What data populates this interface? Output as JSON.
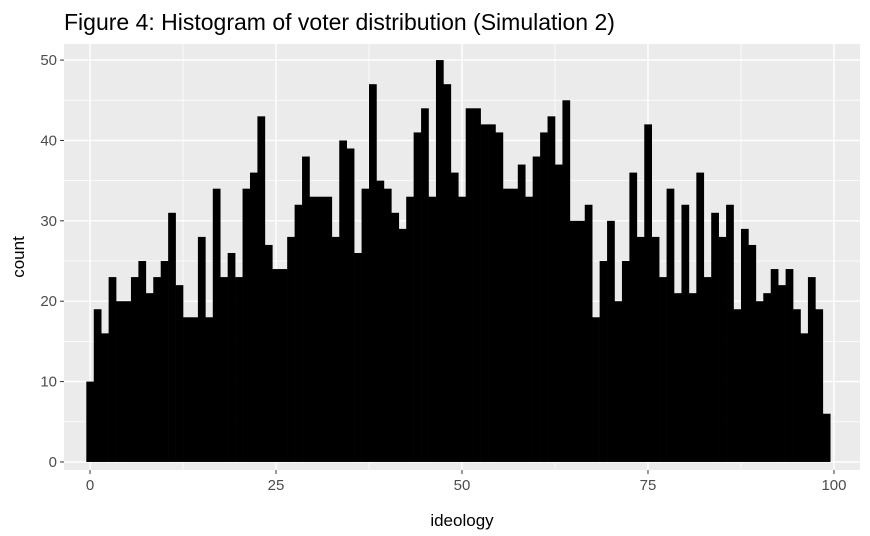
{
  "chart_data": {
    "type": "bar",
    "title": "Figure 4: Histogram of voter distribution (Simulation 2)",
    "xlabel": "ideology",
    "ylabel": "count",
    "xlim": [
      -3.5,
      103.5
    ],
    "ylim": [
      -1,
      52
    ],
    "xticks": [
      0,
      25,
      50,
      75,
      100
    ],
    "xtick_labels": [
      "0",
      "25",
      "50",
      "75",
      "100"
    ],
    "yticks": [
      0,
      10,
      20,
      30,
      40,
      50
    ],
    "ytick_labels": [
      "0",
      "10",
      "20",
      "30",
      "40",
      "50"
    ],
    "grid": true,
    "bin_width": 1,
    "x": [
      0,
      1,
      2,
      3,
      4,
      5,
      6,
      7,
      8,
      9,
      10,
      11,
      12,
      13,
      14,
      15,
      16,
      17,
      18,
      19,
      20,
      21,
      22,
      23,
      24,
      25,
      26,
      27,
      28,
      29,
      30,
      31,
      32,
      33,
      34,
      35,
      36,
      37,
      38,
      39,
      40,
      41,
      42,
      43,
      44,
      45,
      46,
      47,
      48,
      49,
      50,
      51,
      52,
      53,
      54,
      55,
      56,
      57,
      58,
      59,
      60,
      61,
      62,
      63,
      64,
      65,
      66,
      67,
      68,
      69,
      70,
      71,
      72,
      73,
      74,
      75,
      76,
      77,
      78,
      79,
      80,
      81,
      82,
      83,
      84,
      85,
      86,
      87,
      88,
      89,
      90,
      91,
      92,
      93,
      94,
      95,
      96,
      97,
      98,
      99,
      100
    ],
    "values": [
      10,
      19,
      16,
      23,
      20,
      20,
      23,
      25,
      21,
      23,
      25,
      31,
      22,
      18,
      18,
      28,
      18,
      34,
      23,
      26,
      23,
      34,
      36,
      43,
      27,
      24,
      24,
      28,
      32,
      38,
      33,
      33,
      33,
      28,
      40,
      39,
      26,
      34,
      47,
      35,
      34,
      31,
      29,
      33,
      41,
      44,
      33,
      50,
      47,
      36,
      33,
      44,
      44,
      42,
      42,
      41,
      34,
      34,
      37,
      33,
      38,
      41,
      43,
      37,
      45,
      30,
      30,
      32,
      18,
      25,
      30,
      20,
      25,
      36,
      28,
      42,
      28,
      23,
      34,
      21,
      32,
      21,
      36,
      23,
      31,
      28,
      32,
      19,
      29,
      27,
      20,
      21,
      24,
      22,
      24,
      19,
      16,
      23,
      19,
      6,
      0
    ],
    "colors": {
      "bar": "#000000",
      "panel": "#ebebeb",
      "grid_major": "#ffffff",
      "tick_text": "#4d4d4d",
      "tick_mark": "#333333"
    }
  }
}
